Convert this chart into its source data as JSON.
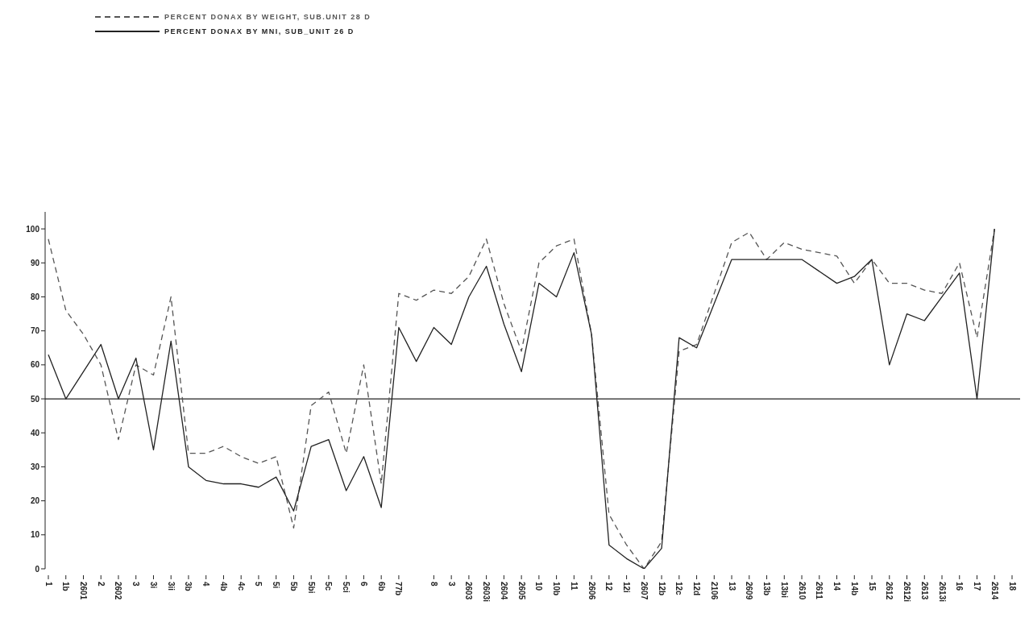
{
  "chart_data": {
    "type": "line",
    "legend": "top left",
    "marker": "none",
    "grid": false,
    "categories": [
      "1",
      "1b",
      "2601",
      "2",
      "2602",
      "3",
      "3i",
      "3ii",
      "3b",
      "4",
      "4b",
      "4c",
      "5",
      "5i",
      "5b",
      "5bi",
      "5c",
      "5ci",
      "6",
      "6b",
      "77b",
      null,
      "8",
      "3",
      "2603",
      "2603i",
      "2604",
      "2605",
      "10",
      "10b",
      "11",
      "2606",
      "12",
      "12i",
      "2607",
      "12b",
      "12c",
      "12d",
      "2106",
      "13",
      "2609",
      "13b",
      "13bi",
      "2610",
      "2611",
      "14",
      "14b",
      "15",
      "2612",
      "2612i",
      "2613",
      "2613i",
      "16",
      "17",
      "2614",
      "18"
    ],
    "ylim": [
      0,
      105
    ],
    "yticks": [
      0,
      10,
      20,
      30,
      40,
      50,
      60,
      70,
      80,
      90,
      100
    ],
    "ref_lines": [
      {
        "axis": "y",
        "value": 50,
        "color": "#222222"
      }
    ],
    "series": [
      {
        "name": "PERCENT DONAX BY WEIGHT, SUB.UNIT 28 D",
        "color": "#555555",
        "line_style": "dashed",
        "values": [
          97,
          76,
          69,
          60,
          38,
          60,
          57,
          80,
          34,
          34,
          36,
          33,
          31,
          33,
          12,
          48,
          52,
          34,
          60,
          25,
          81,
          79,
          82,
          81,
          86,
          97,
          78,
          64,
          90,
          95,
          97,
          69,
          16,
          7,
          0,
          8,
          64,
          66,
          null,
          96,
          99,
          91,
          96,
          94,
          93,
          92,
          84,
          91,
          84,
          84,
          82,
          81,
          90,
          68,
          100,
          null
        ]
      },
      {
        "name": "PERCENT DONAX BY MNI, SUB_UNIT 26 D",
        "color": "#222222",
        "line_style": "solid",
        "values": [
          63,
          50,
          null,
          66,
          50,
          62,
          35,
          67,
          30,
          26,
          25,
          25,
          24,
          27,
          17,
          36,
          38,
          23,
          33,
          18,
          71,
          61,
          71,
          66,
          80,
          89,
          72,
          58,
          84,
          80,
          93,
          69,
          7,
          3,
          0,
          6,
          68,
          65,
          null,
          91,
          91,
          91,
          91,
          91,
          null,
          84,
          86,
          91,
          60,
          75,
          73,
          80,
          87,
          50,
          100,
          null
        ]
      }
    ]
  }
}
